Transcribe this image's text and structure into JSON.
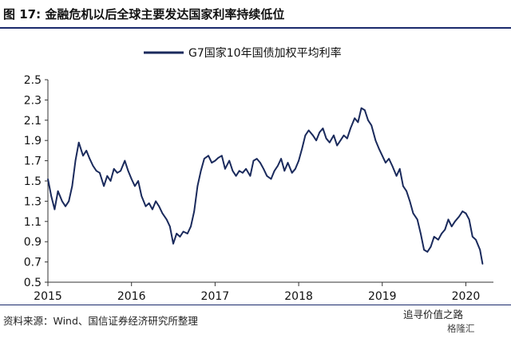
{
  "figure": {
    "title": "图 17: 金融危机以后全球主要发达国家利率持续低位",
    "source": "资料来源：Wind、国信证券经济研究所整理",
    "watermark": "追寻价值之路",
    "watermark_sub": "格隆汇"
  },
  "chart_data": {
    "type": "line",
    "title": "",
    "xlabel": "",
    "ylabel": "",
    "ylim": [
      0.5,
      2.5
    ],
    "xlim": [
      2015.0,
      2020.33
    ],
    "y_ticks": [
      "2.5",
      "2.3",
      "2.1",
      "1.9",
      "1.7",
      "1.5",
      "1.3",
      "1.1",
      "0.9",
      "0.7",
      "0.5"
    ],
    "x_ticks": [
      "2015",
      "2016",
      "2017",
      "2018",
      "2019",
      "2020"
    ],
    "grid": false,
    "legend_position": "top-right",
    "series": [
      {
        "name": "G7国家10年国债加权平均利率",
        "color": "#1a2a5c",
        "x": [
          2015.0,
          2015.04,
          2015.08,
          2015.12,
          2015.17,
          2015.21,
          2015.25,
          2015.29,
          2015.33,
          2015.37,
          2015.42,
          2015.46,
          2015.5,
          2015.54,
          2015.58,
          2015.62,
          2015.67,
          2015.71,
          2015.75,
          2015.79,
          2015.83,
          2015.87,
          2015.92,
          2015.96,
          2016.0,
          2016.04,
          2016.08,
          2016.12,
          2016.17,
          2016.21,
          2016.25,
          2016.29,
          2016.33,
          2016.37,
          2016.42,
          2016.46,
          2016.5,
          2016.54,
          2016.58,
          2016.62,
          2016.67,
          2016.71,
          2016.75,
          2016.79,
          2016.83,
          2016.87,
          2016.92,
          2016.96,
          2017.0,
          2017.04,
          2017.08,
          2017.12,
          2017.17,
          2017.21,
          2017.25,
          2017.29,
          2017.33,
          2017.37,
          2017.42,
          2017.46,
          2017.5,
          2017.54,
          2017.58,
          2017.62,
          2017.67,
          2017.71,
          2017.75,
          2017.79,
          2017.83,
          2017.87,
          2017.92,
          2017.96,
          2018.0,
          2018.04,
          2018.08,
          2018.12,
          2018.17,
          2018.21,
          2018.25,
          2018.29,
          2018.33,
          2018.37,
          2018.42,
          2018.46,
          2018.5,
          2018.54,
          2018.58,
          2018.62,
          2018.67,
          2018.71,
          2018.75,
          2018.79,
          2018.83,
          2018.87,
          2018.92,
          2018.96,
          2019.0,
          2019.04,
          2019.08,
          2019.12,
          2019.17,
          2019.21,
          2019.25,
          2019.29,
          2019.33,
          2019.37,
          2019.42,
          2019.46,
          2019.5,
          2019.54,
          2019.58,
          2019.62,
          2019.67,
          2019.71,
          2019.75,
          2019.79,
          2019.83,
          2019.87,
          2019.92,
          2019.96,
          2020.0,
          2020.04,
          2020.08,
          2020.12,
          2020.17,
          2020.2
        ],
        "values": [
          1.52,
          1.35,
          1.22,
          1.4,
          1.3,
          1.25,
          1.3,
          1.45,
          1.7,
          1.88,
          1.75,
          1.8,
          1.72,
          1.65,
          1.6,
          1.58,
          1.45,
          1.55,
          1.5,
          1.62,
          1.58,
          1.6,
          1.7,
          1.6,
          1.52,
          1.45,
          1.5,
          1.35,
          1.25,
          1.28,
          1.22,
          1.3,
          1.25,
          1.18,
          1.12,
          1.05,
          0.88,
          0.98,
          0.95,
          1.0,
          0.98,
          1.05,
          1.2,
          1.45,
          1.6,
          1.72,
          1.75,
          1.68,
          1.7,
          1.73,
          1.75,
          1.62,
          1.7,
          1.6,
          1.55,
          1.6,
          1.58,
          1.62,
          1.55,
          1.7,
          1.72,
          1.68,
          1.62,
          1.55,
          1.52,
          1.6,
          1.65,
          1.72,
          1.6,
          1.68,
          1.58,
          1.62,
          1.7,
          1.82,
          1.95,
          2.0,
          1.95,
          1.9,
          1.98,
          2.02,
          1.92,
          1.88,
          1.95,
          1.85,
          1.9,
          1.95,
          1.92,
          2.02,
          2.12,
          2.08,
          2.22,
          2.2,
          2.1,
          2.05,
          1.9,
          1.82,
          1.75,
          1.68,
          1.72,
          1.65,
          1.55,
          1.62,
          1.45,
          1.4,
          1.3,
          1.18,
          1.12,
          0.98,
          0.82,
          0.8,
          0.85,
          0.95,
          0.92,
          0.98,
          1.02,
          1.12,
          1.05,
          1.1,
          1.15,
          1.2,
          1.18,
          1.12,
          0.95,
          0.92,
          0.82,
          0.68
        ]
      }
    ]
  }
}
